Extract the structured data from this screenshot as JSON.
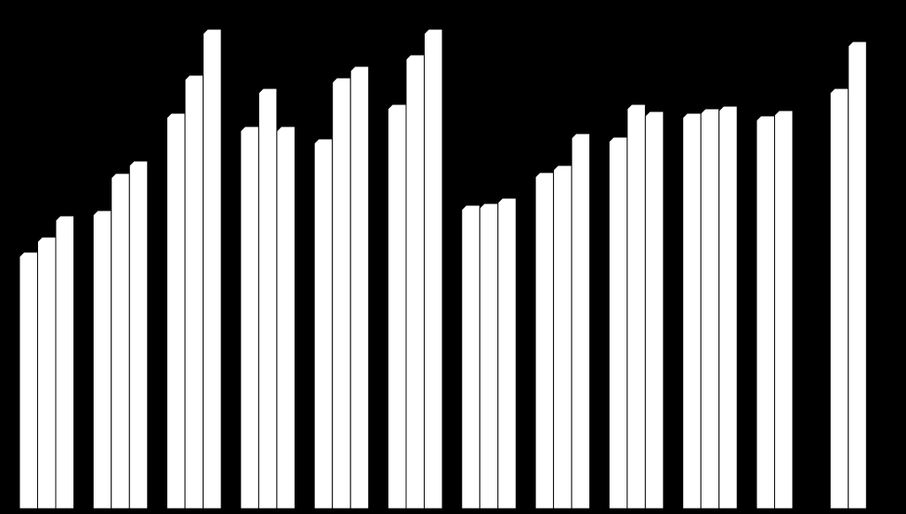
{
  "chart_data": {
    "type": "bar",
    "categories": [
      null,
      null,
      null,
      null,
      null,
      null,
      null,
      null,
      null,
      null,
      null,
      null
    ],
    "series": [
      {
        "color": "#ffffff",
        "values": [
          290,
          337,
          447,
          432,
          418,
          457,
          343,
          380,
          420,
          447,
          444,
          475
        ]
      },
      {
        "color": "#ffffff",
        "values": [
          307,
          379,
          490,
          475,
          487,
          513,
          345,
          388,
          457,
          452,
          450,
          528
        ]
      },
      {
        "color": "#ffffff",
        "values": [
          331,
          393,
          542,
          432,
          500,
          542,
          351,
          424,
          449,
          455,
          null,
          null
        ]
      }
    ],
    "ylim": [
      0,
      575
    ]
  }
}
